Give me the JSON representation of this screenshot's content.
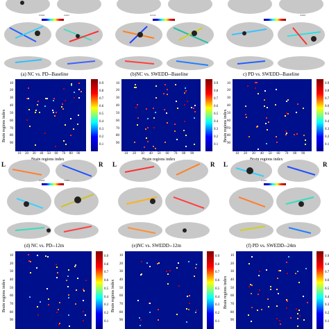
{
  "captions": {
    "a": "(a) NC vs. PD--Baseline",
    "b": "(b)NC vs. SWEDD--Baseline",
    "c": "c) PD vs. SWEDD--Baseline",
    "d": "(d) NC vs. PD--12m",
    "e": "(e)NC vs. SWEDD--12m",
    "f": "(f) PD vs. SWEDD--24m"
  },
  "brain_colorbar_labels": {
    "a_min": "0.0080",
    "a_max": "0.0927",
    "b_min": "0.0156",
    "b_max": "",
    "c_max": "0.0003",
    "d_min": "0.0098",
    "d_max": "0.0827",
    "f_min": "0.2002"
  },
  "side_labels": {
    "left": "L",
    "right": "R"
  },
  "heatmap": {
    "ylabel": "Brain regions index",
    "xlabel": "Brain regions index",
    "yticks": [
      "10",
      "20",
      "30",
      "40",
      "50",
      "60",
      "70",
      "80",
      "90"
    ],
    "xticks": [
      "10",
      "20",
      "30",
      "40",
      "50",
      "60",
      "70",
      "80",
      "90"
    ],
    "cbar_ticks": [
      "0.9",
      "0.8",
      "0.7",
      "0.6",
      "0.5",
      "0.4",
      "0.3",
      "0.2",
      "0.1"
    ]
  },
  "colors": {
    "heat_bg": "#000f8c",
    "brain": "#c8c8c8"
  }
}
